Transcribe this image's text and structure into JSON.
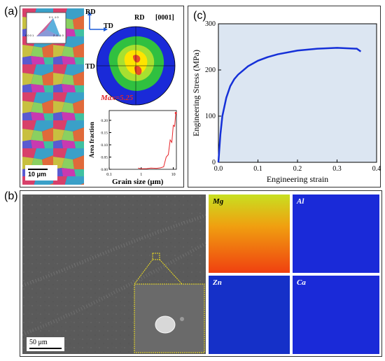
{
  "panels": {
    "a": "(a)",
    "b": "(b)",
    "c": "(c)"
  },
  "ebsd": {
    "scale_bar": "10 μm",
    "ipf_legend": {
      "top": "0 1 -1 0",
      "left": "0 0 0 1",
      "right": "2 -1 -1 0"
    },
    "directions": {
      "rd": "RD",
      "td": "TD"
    }
  },
  "pole_figure": {
    "rd_label": "RD",
    "td_label": "TD",
    "plane": "[0001]",
    "max_label": "Max=5.25",
    "colors": {
      "low": "#2a8a2a",
      "mid": "#ffe400",
      "high": "#e0402a",
      "bg": "#1a2ad8"
    }
  },
  "grain_chart": {
    "xlabel": "Grain size (μm)",
    "ylabel": "Area fraction",
    "xticks": [
      "0.1",
      "1",
      "10"
    ],
    "yticks": [
      "0.00",
      "0.05",
      "0.10",
      "0.15",
      "0.20"
    ],
    "color": "#e8262a"
  },
  "chart_data": {
    "type": "line",
    "xlabel": "Engineering strain",
    "ylabel": "Engineering Stress (MPa)",
    "xlim": [
      0,
      0.4
    ],
    "ylim": [
      0,
      300
    ],
    "xticks": [
      "0.0",
      "0.1",
      "0.2",
      "0.3",
      "0.4"
    ],
    "yticks": [
      "0",
      "100",
      "200",
      "300"
    ],
    "series": [
      {
        "x": [
          0,
          0.005,
          0.01,
          0.02,
          0.03,
          0.04,
          0.05,
          0.075,
          0.1,
          0.125,
          0.15,
          0.2,
          0.25,
          0.3,
          0.35,
          0.36
        ],
        "y": [
          0,
          60,
          100,
          140,
          165,
          180,
          190,
          208,
          220,
          228,
          234,
          242,
          246,
          248,
          246,
          240
        ]
      }
    ],
    "line_color": "#1530d8",
    "bg_color": "#dce6f2",
    "grain_size": {
      "x": [
        0.8,
        1,
        1.5,
        2,
        3,
        4,
        5,
        6,
        7,
        8,
        9,
        10,
        11,
        12
      ],
      "y": [
        0.005,
        0.002,
        0.003,
        0.005,
        0.004,
        0.006,
        0.01,
        0.05,
        0.06,
        0.12,
        0.11,
        0.18,
        0.175,
        0.23
      ]
    }
  },
  "sem": {
    "scale_bar": "50 μm"
  },
  "eds": {
    "mg": "Mg",
    "al": "Al",
    "zn": "Zn",
    "ca": "Ca"
  }
}
